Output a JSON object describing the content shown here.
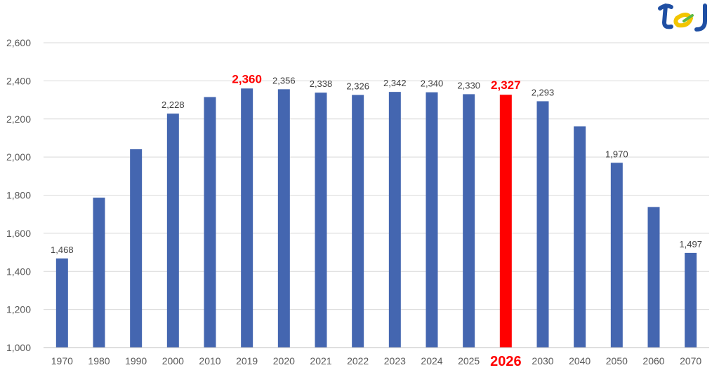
{
  "chart_data": {
    "type": "bar",
    "title": "",
    "xlabel": "",
    "ylabel": "",
    "ylim": [
      1000,
      2600
    ],
    "ytick_step": 200,
    "grid": true,
    "legend": "none",
    "categories": [
      "1970",
      "1980",
      "1990",
      "2000",
      "2010",
      "2019",
      "2020",
      "2021",
      "2022",
      "2023",
      "2024",
      "2025",
      "2026",
      "2030",
      "2040",
      "2050",
      "2060",
      "2070"
    ],
    "values": [
      1468,
      1787,
      2041,
      2228,
      2315,
      2360,
      2356,
      2338,
      2326,
      2342,
      2340,
      2330,
      2327,
      2293,
      2161,
      1970,
      1738,
      1497
    ],
    "data_labels": [
      "1,468",
      "",
      "",
      "2,228",
      "",
      "2,360",
      "2,356",
      "2,338",
      "2,326",
      "2,342",
      "2,340",
      "2,330",
      "2,327",
      "2,293",
      "",
      "1,970",
      "",
      "1,497"
    ],
    "highlight_value_label_index": 5,
    "highlight_index": 12,
    "colors": {
      "bar": "#4466B0",
      "highlight": "#FF0000",
      "grid": "#D9D9D9",
      "axis": "#BFBFBF"
    }
  },
  "logo": {
    "name": "logo-mark",
    "colors": {
      "blue": "#1F4FA3",
      "yellow": "#F2C500",
      "green": "#5BB947"
    }
  }
}
